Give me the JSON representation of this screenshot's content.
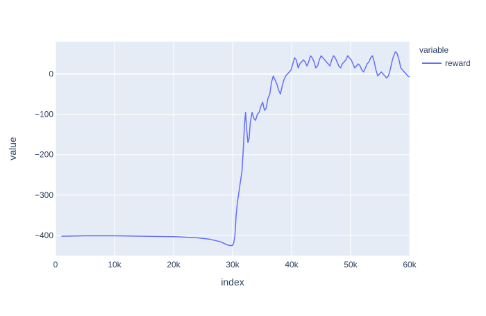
{
  "chart_data": {
    "type": "line",
    "title": "",
    "xlabel": "index",
    "ylabel": "value",
    "xlim": [
      0,
      60000
    ],
    "ylim": [
      -450,
      80
    ],
    "x_ticks": [
      0,
      10000,
      20000,
      30000,
      40000,
      50000,
      60000
    ],
    "x_tick_labels": [
      "0",
      "10k",
      "20k",
      "30k",
      "40k",
      "50k",
      "60k"
    ],
    "y_ticks": [
      -400,
      -300,
      -200,
      -100,
      0
    ],
    "y_tick_labels": [
      "−400",
      "−300",
      "−200",
      "−100",
      "0"
    ],
    "grid": true,
    "legend": {
      "title": "variable",
      "placement": "right"
    },
    "colors": {
      "plot_bg": "#e5ecf6",
      "grid": "#ffffff",
      "text": "#2a3f5f",
      "series": "#636efa"
    },
    "series": [
      {
        "name": "reward",
        "x": [
          1000,
          5000,
          10000,
          15000,
          20000,
          24000,
          26000,
          28000,
          29000,
          29500,
          30000,
          30200,
          30400,
          30600,
          30800,
          31000,
          31300,
          31600,
          31800,
          32000,
          32200,
          32400,
          32600,
          32800,
          33000,
          33300,
          33600,
          33900,
          34200,
          34500,
          34800,
          35100,
          35400,
          35700,
          36000,
          36300,
          36600,
          36900,
          37200,
          37500,
          37800,
          38100,
          38400,
          38700,
          39000,
          39300,
          39600,
          39900,
          40200,
          40500,
          40800,
          41100,
          41400,
          41700,
          42000,
          42300,
          42600,
          42900,
          43200,
          43500,
          43800,
          44100,
          44400,
          44700,
          45000,
          45300,
          45600,
          45900,
          46200,
          46500,
          46800,
          47100,
          47400,
          47700,
          48000,
          48300,
          48600,
          48900,
          49200,
          49500,
          49800,
          50100,
          50400,
          50700,
          51000,
          51300,
          51600,
          51900,
          52200,
          52500,
          52800,
          53100,
          53400,
          53700,
          54000,
          54300,
          54600,
          54900,
          55200,
          55500,
          55800,
          56100,
          56400,
          56700,
          57000,
          57300,
          57600,
          57900,
          58200,
          58500,
          58800,
          59100,
          59400,
          59700,
          60000
        ],
        "y": [
          -402,
          -401,
          -401,
          -402,
          -403,
          -406,
          -409,
          -416,
          -423,
          -425,
          -425,
          -418,
          -400,
          -350,
          -320,
          -300,
          -270,
          -240,
          -190,
          -130,
          -95,
          -140,
          -170,
          -160,
          -120,
          -95,
          -110,
          -115,
          -100,
          -95,
          -80,
          -70,
          -90,
          -85,
          -60,
          -50,
          -20,
          -5,
          -15,
          -25,
          -40,
          -50,
          -30,
          -15,
          -5,
          0,
          5,
          10,
          25,
          40,
          35,
          15,
          25,
          30,
          35,
          30,
          20,
          30,
          45,
          40,
          30,
          15,
          20,
          35,
          45,
          40,
          35,
          30,
          25,
          20,
          35,
          45,
          40,
          30,
          20,
          15,
          25,
          30,
          35,
          45,
          40,
          35,
          25,
          15,
          20,
          25,
          20,
          10,
          5,
          15,
          25,
          30,
          40,
          45,
          30,
          10,
          -5,
          0,
          5,
          0,
          -5,
          -10,
          -5,
          10,
          30,
          45,
          55,
          50,
          35,
          15,
          10,
          5,
          0,
          -5,
          -8
        ]
      }
    ]
  }
}
